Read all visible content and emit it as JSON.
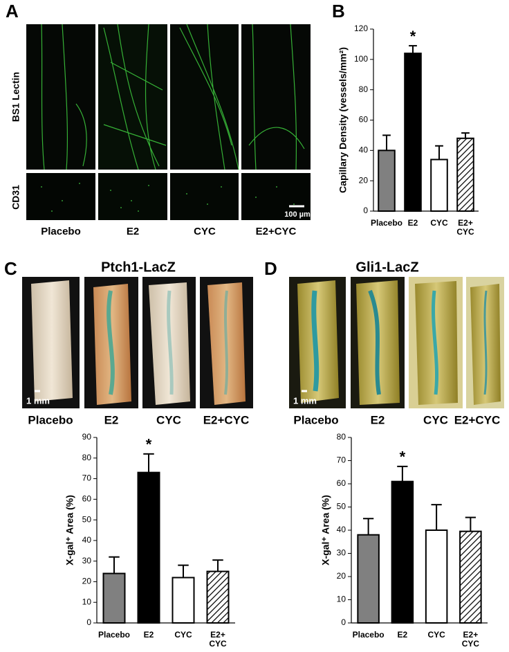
{
  "panel_labels": [
    "A",
    "B",
    "C",
    "D"
  ],
  "panel_a": {
    "row_labels": [
      "BS1 Lectin",
      "CD31"
    ],
    "column_labels": [
      "Placebo",
      "E2",
      "CYC",
      "E2+CYC"
    ],
    "scale_bar": "100 µm"
  },
  "panel_c": {
    "title": "Ptch1-LacZ",
    "column_labels": [
      "Placebo",
      "E2",
      "CYC",
      "E2+CYC"
    ],
    "scale_bar": "1 mm"
  },
  "panel_d": {
    "title": "Gli1-LacZ",
    "column_labels": [
      "Placebo",
      "E2",
      "CYC",
      "E2+CYC"
    ],
    "scale_bar": "1 mm"
  },
  "chart_data": [
    {
      "type": "bar",
      "ylabel": "Capillary Density (vessels/mm²)",
      "categories": [
        "Placebo",
        "E2",
        "CYC",
        "E2+ CYC"
      ],
      "values": [
        40,
        104,
        34,
        48
      ],
      "errors": [
        10,
        5,
        9,
        3.5
      ],
      "markers": [
        null,
        "*",
        null,
        null
      ],
      "colors": [
        "#808080",
        "#000000",
        "#ffffff",
        "#ffffff"
      ],
      "hatch": [
        false,
        false,
        false,
        true
      ],
      "ylim": [
        0,
        120
      ],
      "yticks": [
        0,
        20,
        40,
        60,
        80,
        100,
        120
      ]
    },
    {
      "type": "bar",
      "ylabel": "X-gal⁺ Area (%)",
      "categories": [
        "Placebo",
        "E2",
        "CYC",
        "E2+ CYC"
      ],
      "values": [
        24,
        73,
        22,
        25
      ],
      "errors": [
        8,
        9,
        6,
        5.5
      ],
      "markers": [
        null,
        "*",
        null,
        null
      ],
      "colors": [
        "#808080",
        "#000000",
        "#ffffff",
        "#ffffff"
      ],
      "hatch": [
        false,
        false,
        false,
        true
      ],
      "ylim": [
        0,
        90
      ],
      "yticks": [
        0,
        10,
        20,
        30,
        40,
        50,
        60,
        70,
        80,
        90
      ]
    },
    {
      "type": "bar",
      "ylabel": "X-gal⁺ Area (%)",
      "categories": [
        "Placebo",
        "E2",
        "CYC",
        "E2+ CYC"
      ],
      "values": [
        38,
        61,
        40,
        39.5
      ],
      "errors": [
        7,
        6.5,
        11,
        6
      ],
      "markers": [
        null,
        "*",
        null,
        null
      ],
      "colors": [
        "#808080",
        "#000000",
        "#ffffff",
        "#ffffff"
      ],
      "hatch": [
        false,
        false,
        false,
        true
      ],
      "ylim": [
        0,
        80
      ],
      "yticks": [
        0,
        10,
        20,
        30,
        40,
        50,
        60,
        70,
        80
      ]
    }
  ]
}
